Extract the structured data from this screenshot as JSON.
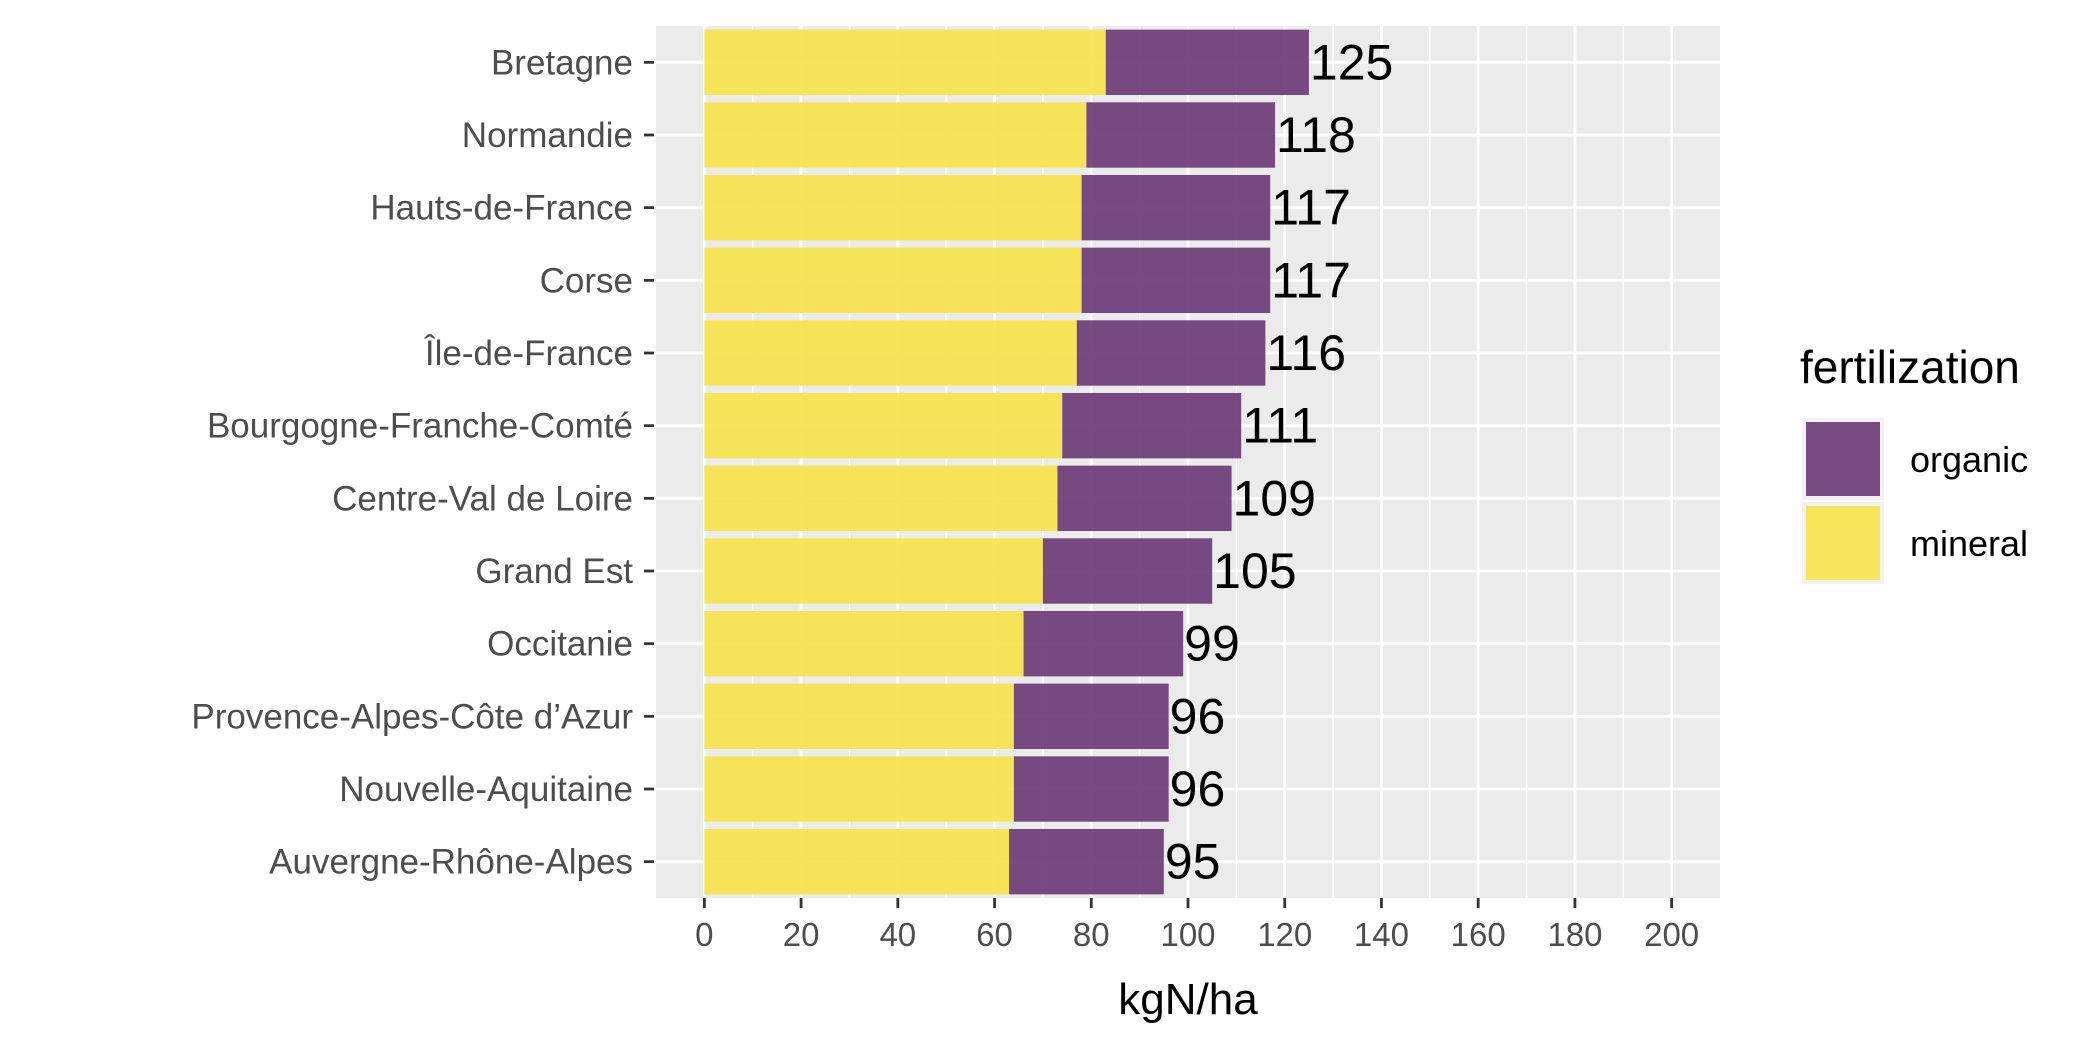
{
  "chart_data": {
    "type": "bar",
    "orientation": "horizontal",
    "stacked": true,
    "xlabel": "kgN/ha",
    "ylabel": "",
    "xlim": [
      -10,
      210
    ],
    "x_ticks": [
      0,
      20,
      40,
      60,
      80,
      100,
      120,
      140,
      160,
      180,
      200
    ],
    "categories": [
      "Bretagne",
      "Normandie",
      "Hauts-de-France",
      "Corse",
      "Île-de-France",
      "Bourgogne-Franche-Comté",
      "Centre-Val de Loire",
      "Grand Est",
      "Occitanie",
      "Provence-Alpes-Côte d’Azur",
      "Nouvelle-Aquitaine",
      "Auvergne-Rhône-Alpes"
    ],
    "series": [
      {
        "name": "mineral",
        "color": "#F7E34F",
        "values": [
          83,
          79,
          78,
          78,
          77,
          74,
          73,
          70,
          66,
          64,
          64,
          63
        ]
      },
      {
        "name": "organic",
        "color": "#6E3F7A",
        "values": [
          42,
          39,
          39,
          39,
          39,
          37,
          36,
          35,
          33,
          32,
          32,
          32
        ]
      }
    ],
    "totals": [
      "125",
      "118",
      "117",
      "117",
      "116",
      "111",
      "109",
      "105",
      "99",
      "96",
      "96",
      "95"
    ],
    "legend": {
      "title": "fertilization",
      "position": "right",
      "entries": [
        {
          "name": "organic",
          "color": "#6E3F7A"
        },
        {
          "name": "mineral",
          "color": "#F7E34F"
        }
      ]
    },
    "grid": true,
    "panel_background": "#EBEBEB"
  }
}
